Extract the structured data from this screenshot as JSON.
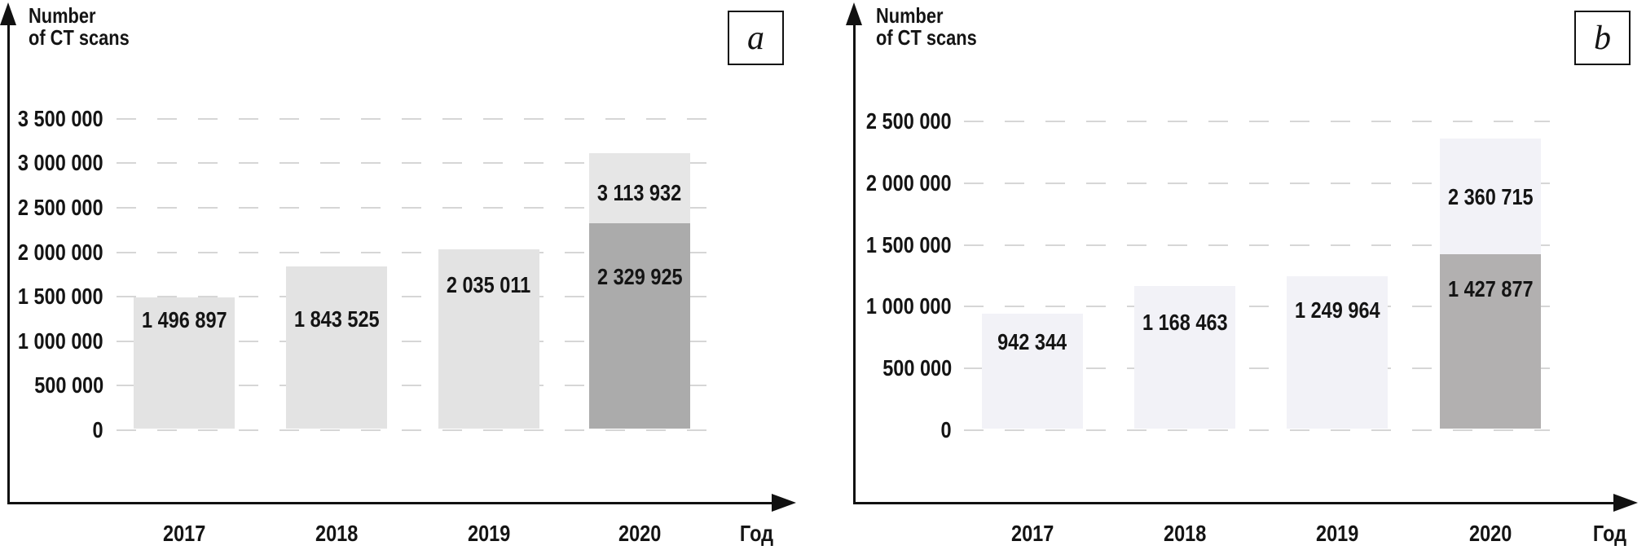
{
  "page": {
    "background": "#ffffff",
    "grid_color": "#d6d6d6",
    "axis_color": "#111111",
    "text_color": "#141414"
  },
  "chart_data": [
    {
      "type": "bar",
      "panel_tag": "a",
      "title": "Number of CT scans",
      "title_lines": [
        "Number",
        "of CT scans"
      ],
      "xlabel": "Год",
      "categories": [
        "2017",
        "2018",
        "2019",
        "2020"
      ],
      "values": [
        1496897,
        1843525,
        2035011,
        3113932
      ],
      "bar_labels": [
        "1 496 897",
        "1 843 525",
        "2 035 011"
      ],
      "stacked_bar": {
        "category": "2020",
        "total": 3113932,
        "total_label": "3 113 932",
        "lower": 2329925,
        "lower_label": "2 329 925"
      },
      "ylim": [
        0,
        3500000
      ],
      "ytick_step": 500000,
      "y_tick_labels": [
        "0",
        "500 000",
        "1 000 000",
        "1 500 000",
        "2 000 000",
        "2 500 000",
        "3 000 000",
        "3 500 000"
      ],
      "grid": "dashed",
      "legend": "none",
      "colors": {
        "bar": "#e3e3e3",
        "stacked_top": "#e6e6e6",
        "stacked_bottom": "#ababab"
      }
    },
    {
      "type": "bar",
      "panel_tag": "b",
      "title": "Number of CT scans",
      "title_lines": [
        "Number",
        "of CT scans"
      ],
      "xlabel": "Год",
      "categories": [
        "2017",
        "2018",
        "2019",
        "2020"
      ],
      "values": [
        942344,
        1168463,
        1249964,
        2360715
      ],
      "bar_labels": [
        "942 344",
        "1 168 463",
        "1 249 964"
      ],
      "stacked_bar": {
        "category": "2020",
        "total": 2360715,
        "total_label": "2 360 715",
        "lower": 1427877,
        "lower_label": "1 427 877"
      },
      "ylim": [
        0,
        2500000
      ],
      "ytick_step": 500000,
      "y_tick_labels": [
        "0",
        "500 000",
        "1 000 000",
        "1 500 000",
        "2 000 000",
        "2 500 000"
      ],
      "grid": "dashed",
      "legend": "none",
      "colors": {
        "bar": "#f2f2f7",
        "stacked_top": "#f2f2f7",
        "stacked_bottom": "#b2b0b0"
      }
    }
  ]
}
